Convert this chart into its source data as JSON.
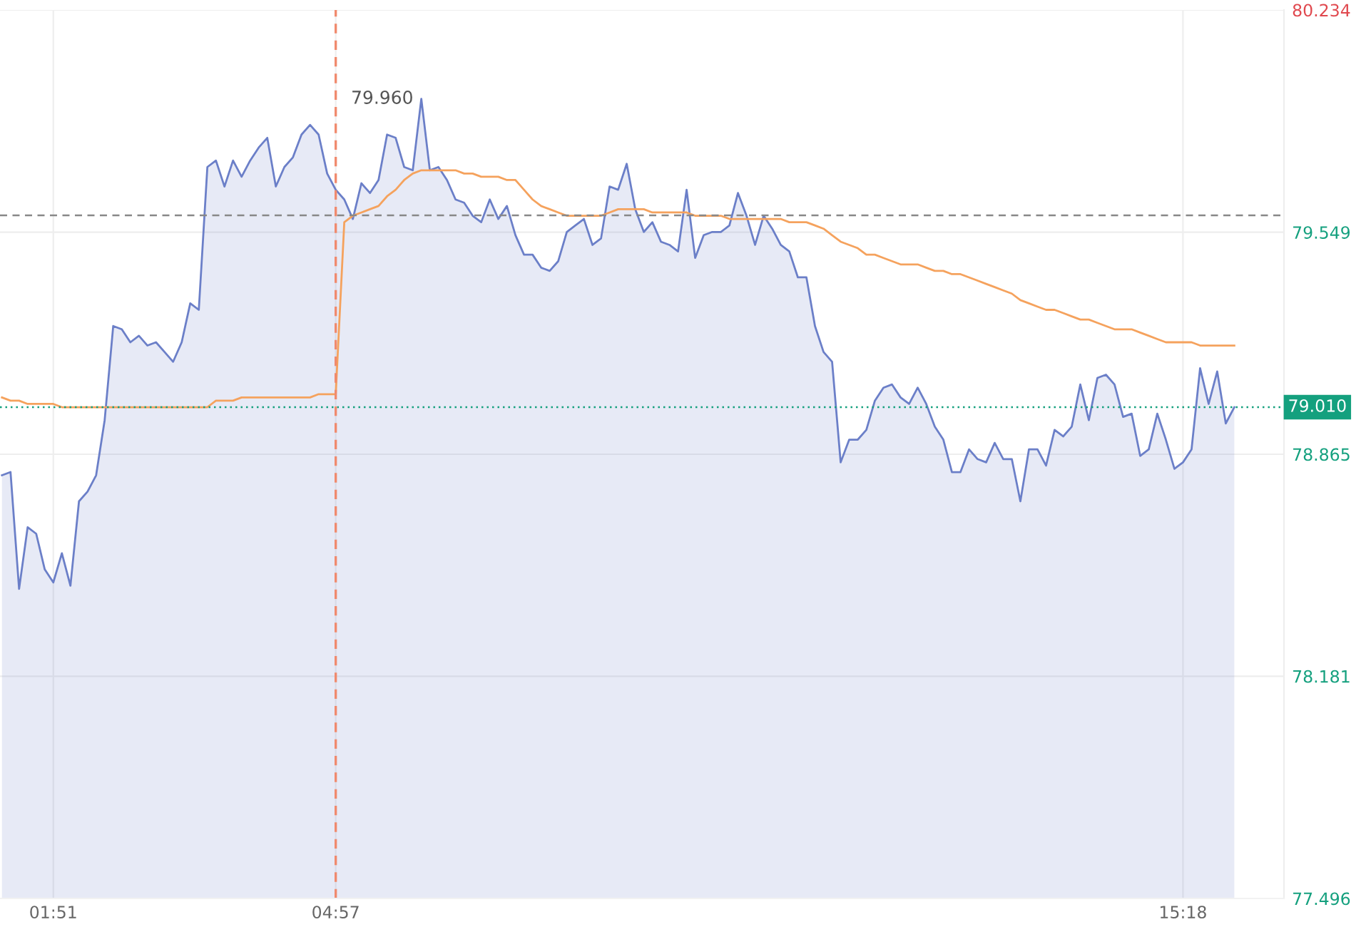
{
  "chart_data": {
    "type": "area",
    "categories": [
      null,
      null,
      null,
      null,
      null,
      null,
      "01:51",
      null,
      null,
      null,
      null,
      null,
      null,
      null,
      null,
      null,
      null,
      null,
      null,
      null,
      null,
      null,
      null,
      null,
      null,
      null,
      null,
      null,
      null,
      null,
      null,
      null,
      null,
      null,
      null,
      null,
      null,
      null,
      null,
      "04:57",
      null,
      null,
      null,
      null,
      null,
      null,
      null,
      null,
      null,
      null,
      null,
      null,
      null,
      null,
      null,
      null,
      null,
      null,
      null,
      null,
      null,
      null,
      null,
      null,
      null,
      null,
      null,
      null,
      null,
      null,
      null,
      null,
      null,
      null,
      null,
      null,
      null,
      null,
      null,
      null,
      null,
      null,
      null,
      null,
      null,
      null,
      null,
      null,
      null,
      null,
      null,
      null,
      null,
      null,
      null,
      null,
      null,
      null,
      null,
      null,
      null,
      null,
      null,
      null,
      null,
      null,
      null,
      null,
      null,
      null,
      null,
      null,
      null,
      null,
      null,
      null,
      null,
      null,
      null,
      null,
      null,
      null,
      null,
      null,
      null,
      null,
      null,
      null,
      null,
      null,
      null,
      null,
      null,
      null,
      null,
      null,
      null,
      null,
      "15:18",
      null,
      null,
      null,
      null,
      null,
      null
    ],
    "series": [
      {
        "color": "#6b7fc8",
        "values": [
          78.8,
          78.81,
          78.45,
          78.64,
          78.62,
          78.51,
          78.47,
          78.56,
          78.46,
          78.72,
          78.75,
          78.8,
          78.97,
          79.26,
          79.25,
          79.21,
          79.23,
          79.2,
          79.21,
          79.18,
          79.15,
          79.21,
          79.33,
          79.31,
          79.75,
          79.77,
          79.69,
          79.77,
          79.72,
          79.77,
          79.81,
          79.84,
          79.69,
          79.75,
          79.78,
          79.85,
          79.88,
          79.85,
          79.73,
          79.68,
          79.65,
          79.59,
          79.7,
          79.67,
          79.71,
          79.85,
          79.84,
          79.75,
          79.74,
          79.96,
          79.74,
          79.75,
          79.71,
          79.65,
          79.64,
          79.6,
          79.58,
          79.65,
          79.59,
          79.63,
          79.54,
          79.48,
          79.48,
          79.44,
          79.43,
          79.46,
          79.55,
          79.57,
          79.59,
          79.51,
          79.53,
          79.69,
          79.68,
          79.76,
          79.62,
          79.55,
          79.58,
          79.52,
          79.51,
          79.49,
          79.68,
          79.47,
          79.54,
          79.55,
          79.55,
          79.57,
          79.67,
          79.6,
          79.51,
          79.6,
          79.56,
          79.51,
          79.49,
          79.41,
          79.41,
          79.26,
          79.18,
          79.15,
          78.84,
          78.91,
          78.91,
          78.94,
          79.03,
          79.07,
          79.08,
          79.04,
          79.02,
          79.07,
          79.02,
          78.95,
          78.91,
          78.81,
          78.81,
          78.88,
          78.85,
          78.84,
          78.9,
          78.85,
          78.85,
          78.72,
          78.88,
          78.88,
          78.83,
          78.94,
          78.92,
          78.95,
          79.08,
          78.97,
          79.1,
          79.11,
          79.08,
          78.98,
          78.99,
          78.86,
          78.88,
          78.99,
          78.91,
          78.82,
          78.84,
          78.88,
          79.13,
          79.02,
          79.12,
          78.96,
          79.01
        ]
      },
      {
        "type": "line",
        "color": "#f5a25d",
        "values": [
          79.04,
          79.03,
          79.03,
          79.02,
          79.02,
          79.02,
          79.02,
          79.01,
          79.01,
          79.01,
          79.01,
          79.01,
          79.01,
          79.01,
          79.01,
          79.01,
          79.01,
          79.01,
          79.01,
          79.01,
          79.01,
          79.01,
          79.01,
          79.01,
          79.01,
          79.03,
          79.03,
          79.03,
          79.04,
          79.04,
          79.04,
          79.04,
          79.04,
          79.04,
          79.04,
          79.04,
          79.04,
          79.05,
          79.05,
          79.05,
          79.58,
          79.6,
          79.61,
          79.62,
          79.63,
          79.66,
          79.68,
          79.71,
          79.73,
          79.74,
          79.74,
          79.74,
          79.74,
          79.74,
          79.73,
          79.73,
          79.72,
          79.72,
          79.72,
          79.71,
          79.71,
          79.68,
          79.65,
          79.63,
          79.62,
          79.61,
          79.6,
          79.6,
          79.6,
          79.6,
          79.6,
          79.61,
          79.62,
          79.62,
          79.62,
          79.62,
          79.61,
          79.61,
          79.61,
          79.61,
          79.61,
          79.6,
          79.6,
          79.6,
          79.6,
          79.59,
          79.59,
          79.59,
          79.59,
          79.59,
          79.59,
          79.59,
          79.58,
          79.58,
          79.58,
          79.57,
          79.56,
          79.54,
          79.52,
          79.51,
          79.5,
          79.48,
          79.48,
          79.47,
          79.46,
          79.45,
          79.45,
          79.45,
          79.44,
          79.43,
          79.43,
          79.42,
          79.42,
          79.41,
          79.4,
          79.39,
          79.38,
          79.37,
          79.36,
          79.34,
          79.33,
          79.32,
          79.31,
          79.31,
          79.3,
          79.29,
          79.28,
          79.28,
          79.27,
          79.26,
          79.25,
          79.25,
          79.25,
          79.24,
          79.23,
          79.22,
          79.21,
          79.21,
          79.21,
          79.21,
          79.2,
          79.2,
          79.2,
          79.2,
          79.2
        ]
      }
    ],
    "ylim": [
      77.496,
      80.234
    ],
    "yticks": [
      77.496,
      78.181,
      78.865,
      79.549,
      80.234
    ],
    "ref_lines": [
      {
        "axis": "y",
        "value": 79.601,
        "color": "#888888",
        "line_style": "dashed"
      },
      {
        "axis": "y",
        "value": 79.01,
        "label": "79.010",
        "color": "#14a07e",
        "line_style": "dotted"
      },
      {
        "axis": "x",
        "value": "04:57",
        "color": "#f08a6e",
        "line_style": "dashed"
      }
    ],
    "annotations": [
      "79.960"
    ],
    "grid": true,
    "legend": false,
    "marker": "none",
    "line_style": "solid"
  }
}
